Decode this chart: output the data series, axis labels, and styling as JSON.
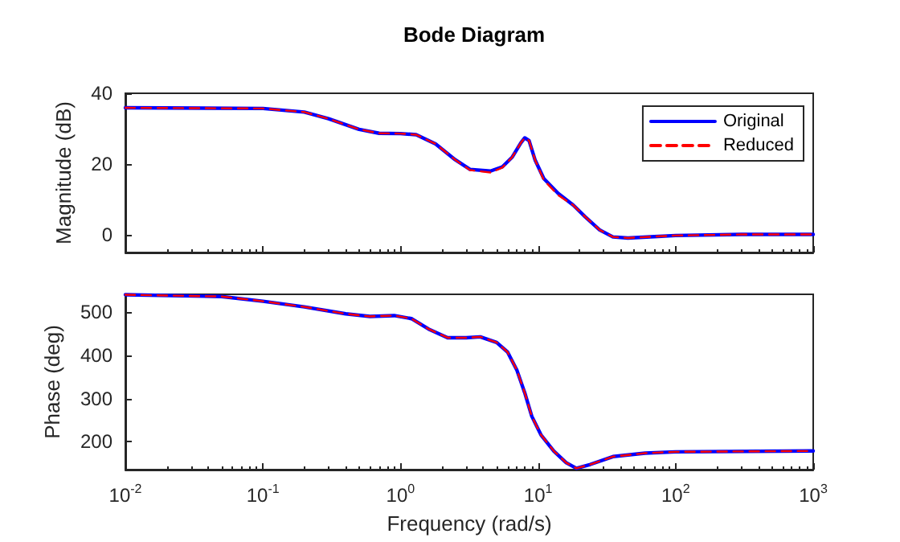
{
  "chart_data": [
    {
      "type": "line",
      "title": "Bode Diagram",
      "ylabel": "Magnitude (dB)",
      "log": "x",
      "grid": false,
      "legend": "top right",
      "tick_labels": "y",
      "xlim": [
        0.01,
        1000
      ],
      "ylim": [
        -5,
        40
      ],
      "yticks": [
        0,
        20,
        40
      ],
      "x": [
        0.01,
        0.1,
        0.2,
        0.3,
        0.5,
        0.7,
        1,
        1.3,
        1.8,
        2.5,
        3.2,
        4.5,
        5.5,
        6.5,
        7.5,
        8,
        8.6,
        9.5,
        11,
        14,
        18,
        22,
        28,
        35,
        45,
        70,
        100,
        300,
        1000
      ],
      "series": [
        {
          "name": "Original",
          "color": "#0000ff",
          "line_style": "solid",
          "values": [
            35.9,
            35.7,
            34.7,
            32.8,
            29.8,
            28.7,
            28.6,
            28.3,
            25.7,
            21.2,
            18.5,
            18,
            19.2,
            22,
            26,
            27.4,
            26.6,
            21.2,
            15.9,
            11.7,
            8.4,
            5.1,
            1.4,
            -0.6,
            -0.9,
            -0.5,
            -0.2,
            0.1,
            0.1
          ]
        },
        {
          "name": "Reduced",
          "color": "#ff0000",
          "line_style": "dashed",
          "values": [
            35.9,
            35.7,
            34.7,
            32.8,
            29.8,
            28.7,
            28.6,
            28.3,
            25.7,
            21.2,
            18.3,
            17.6,
            19,
            22,
            26,
            27.4,
            26.6,
            21.2,
            15.5,
            11.2,
            8.4,
            5.1,
            1.4,
            -0.6,
            -0.9,
            -0.5,
            -0.2,
            0.1,
            0.1
          ]
        }
      ]
    },
    {
      "type": "line",
      "xlabel": "Frequency (rad/s)",
      "ylabel": "Phase (deg)",
      "log": "x",
      "grid": false,
      "xlim": [
        0.01,
        1000
      ],
      "xticks": [
        {
          "value": 0.01,
          "label": "10$^{-2}$"
        },
        {
          "value": 0.1,
          "label": "10$^{-1}$"
        },
        {
          "value": 1,
          "label": "10$^{0}$"
        },
        {
          "value": 10,
          "label": "10$^{1}$"
        },
        {
          "value": 100,
          "label": "10$^{2}$"
        },
        {
          "value": 1000,
          "label": "10$^{3}$"
        }
      ],
      "ylim": [
        136,
        540
      ],
      "yticks": [
        200,
        300,
        400,
        500
      ],
      "x": [
        0.01,
        0.05,
        0.1,
        0.2,
        0.4,
        0.6,
        0.9,
        1.2,
        1.6,
        2.2,
        3,
        3.8,
        5,
        6,
        7,
        8,
        9,
        10.5,
        13,
        16,
        19,
        24,
        35,
        60,
        100,
        1000
      ],
      "series": [
        {
          "color": "#0000ff",
          "line_style": "solid",
          "values": [
            539,
            535,
            524,
            511,
            495,
            489,
            491,
            484,
            460,
            440,
            440,
            442,
            429,
            407,
            366,
            313,
            259,
            216,
            179,
            152,
            139,
            148,
            166,
            174,
            177,
            179
          ]
        },
        {
          "color": "#ff0000",
          "line_style": "dashed",
          "values": [
            539,
            535,
            524,
            511,
            495,
            489,
            491,
            484,
            460,
            440,
            440,
            442,
            429,
            407,
            366,
            313,
            259,
            216,
            179,
            152,
            139,
            148,
            166,
            174,
            177,
            179
          ]
        }
      ]
    }
  ]
}
